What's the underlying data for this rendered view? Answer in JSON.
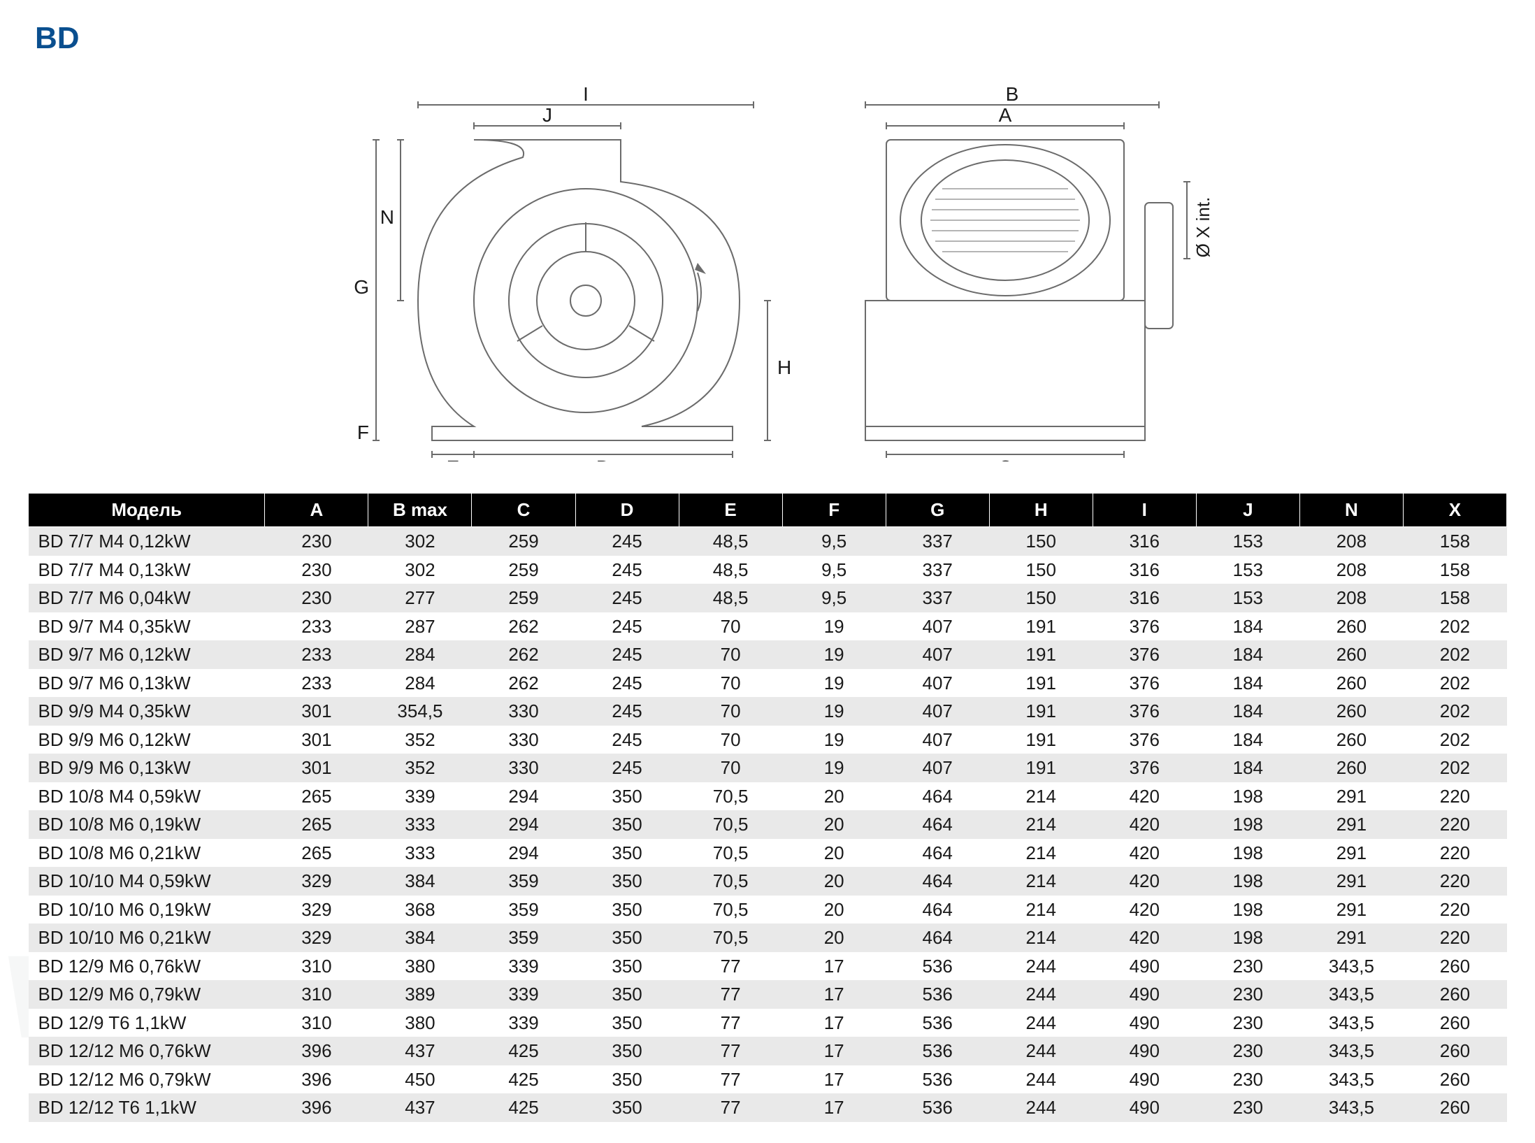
{
  "title": "BD",
  "watermark": "ventel",
  "diagram": {
    "labels": [
      "I",
      "J",
      "N",
      "G",
      "F",
      "E",
      "D",
      "H",
      "B",
      "A",
      "C",
      "Ø X int."
    ],
    "stroke_color": "#6b6b6b",
    "text_color": "#1a1a1a",
    "line_width": 2
  },
  "table": {
    "header_bg": "#000000",
    "header_fg": "#ffffff",
    "row_alt_bg": "#e9e9e9",
    "row_bg": "#ffffff",
    "text_color": "#1a1a1a",
    "font_size_pt": 20,
    "columns": [
      "Модель",
      "A",
      "B max",
      "C",
      "D",
      "E",
      "F",
      "G",
      "H",
      "I",
      "J",
      "N",
      "X"
    ],
    "rows": [
      [
        "BD 7/7 M4 0,12kW",
        "230",
        "302",
        "259",
        "245",
        "48,5",
        "9,5",
        "337",
        "150",
        "316",
        "153",
        "208",
        "158"
      ],
      [
        "BD 7/7 M4 0,13kW",
        "230",
        "302",
        "259",
        "245",
        "48,5",
        "9,5",
        "337",
        "150",
        "316",
        "153",
        "208",
        "158"
      ],
      [
        "BD 7/7 M6 0,04kW",
        "230",
        "277",
        "259",
        "245",
        "48,5",
        "9,5",
        "337",
        "150",
        "316",
        "153",
        "208",
        "158"
      ],
      [
        "BD 9/7 M4 0,35kW",
        "233",
        "287",
        "262",
        "245",
        "70",
        "19",
        "407",
        "191",
        "376",
        "184",
        "260",
        "202"
      ],
      [
        "BD 9/7 M6 0,12kW",
        "233",
        "284",
        "262",
        "245",
        "70",
        "19",
        "407",
        "191",
        "376",
        "184",
        "260",
        "202"
      ],
      [
        "BD 9/7 M6 0,13kW",
        "233",
        "284",
        "262",
        "245",
        "70",
        "19",
        "407",
        "191",
        "376",
        "184",
        "260",
        "202"
      ],
      [
        "BD 9/9 M4 0,35kW",
        "301",
        "354,5",
        "330",
        "245",
        "70",
        "19",
        "407",
        "191",
        "376",
        "184",
        "260",
        "202"
      ],
      [
        "BD 9/9 M6 0,12kW",
        "301",
        "352",
        "330",
        "245",
        "70",
        "19",
        "407",
        "191",
        "376",
        "184",
        "260",
        "202"
      ],
      [
        "BD 9/9 M6 0,13kW",
        "301",
        "352",
        "330",
        "245",
        "70",
        "19",
        "407",
        "191",
        "376",
        "184",
        "260",
        "202"
      ],
      [
        "BD 10/8 M4 0,59kW",
        "265",
        "339",
        "294",
        "350",
        "70,5",
        "20",
        "464",
        "214",
        "420",
        "198",
        "291",
        "220"
      ],
      [
        "BD 10/8 M6 0,19kW",
        "265",
        "333",
        "294",
        "350",
        "70,5",
        "20",
        "464",
        "214",
        "420",
        "198",
        "291",
        "220"
      ],
      [
        "BD 10/8 M6 0,21kW",
        "265",
        "333",
        "294",
        "350",
        "70,5",
        "20",
        "464",
        "214",
        "420",
        "198",
        "291",
        "220"
      ],
      [
        "BD 10/10 M4 0,59kW",
        "329",
        "384",
        "359",
        "350",
        "70,5",
        "20",
        "464",
        "214",
        "420",
        "198",
        "291",
        "220"
      ],
      [
        "BD 10/10 M6 0,19kW",
        "329",
        "368",
        "359",
        "350",
        "70,5",
        "20",
        "464",
        "214",
        "420",
        "198",
        "291",
        "220"
      ],
      [
        "BD 10/10 M6 0,21kW",
        "329",
        "384",
        "359",
        "350",
        "70,5",
        "20",
        "464",
        "214",
        "420",
        "198",
        "291",
        "220"
      ],
      [
        "BD 12/9 M6 0,76kW",
        "310",
        "380",
        "339",
        "350",
        "77",
        "17",
        "536",
        "244",
        "490",
        "230",
        "343,5",
        "260"
      ],
      [
        "BD 12/9 M6 0,79kW",
        "310",
        "389",
        "339",
        "350",
        "77",
        "17",
        "536",
        "244",
        "490",
        "230",
        "343,5",
        "260"
      ],
      [
        "BD 12/9 T6 1,1kW",
        "310",
        "380",
        "339",
        "350",
        "77",
        "17",
        "536",
        "244",
        "490",
        "230",
        "343,5",
        "260"
      ],
      [
        "BD 12/12 M6 0,76kW",
        "396",
        "437",
        "425",
        "350",
        "77",
        "17",
        "536",
        "244",
        "490",
        "230",
        "343,5",
        "260"
      ],
      [
        "BD 12/12 M6 0,79kW",
        "396",
        "450",
        "425",
        "350",
        "77",
        "17",
        "536",
        "244",
        "490",
        "230",
        "343,5",
        "260"
      ],
      [
        "BD 12/12 T6 1,1kW",
        "396",
        "437",
        "425",
        "350",
        "77",
        "17",
        "536",
        "244",
        "490",
        "230",
        "343,5",
        "260"
      ]
    ]
  }
}
